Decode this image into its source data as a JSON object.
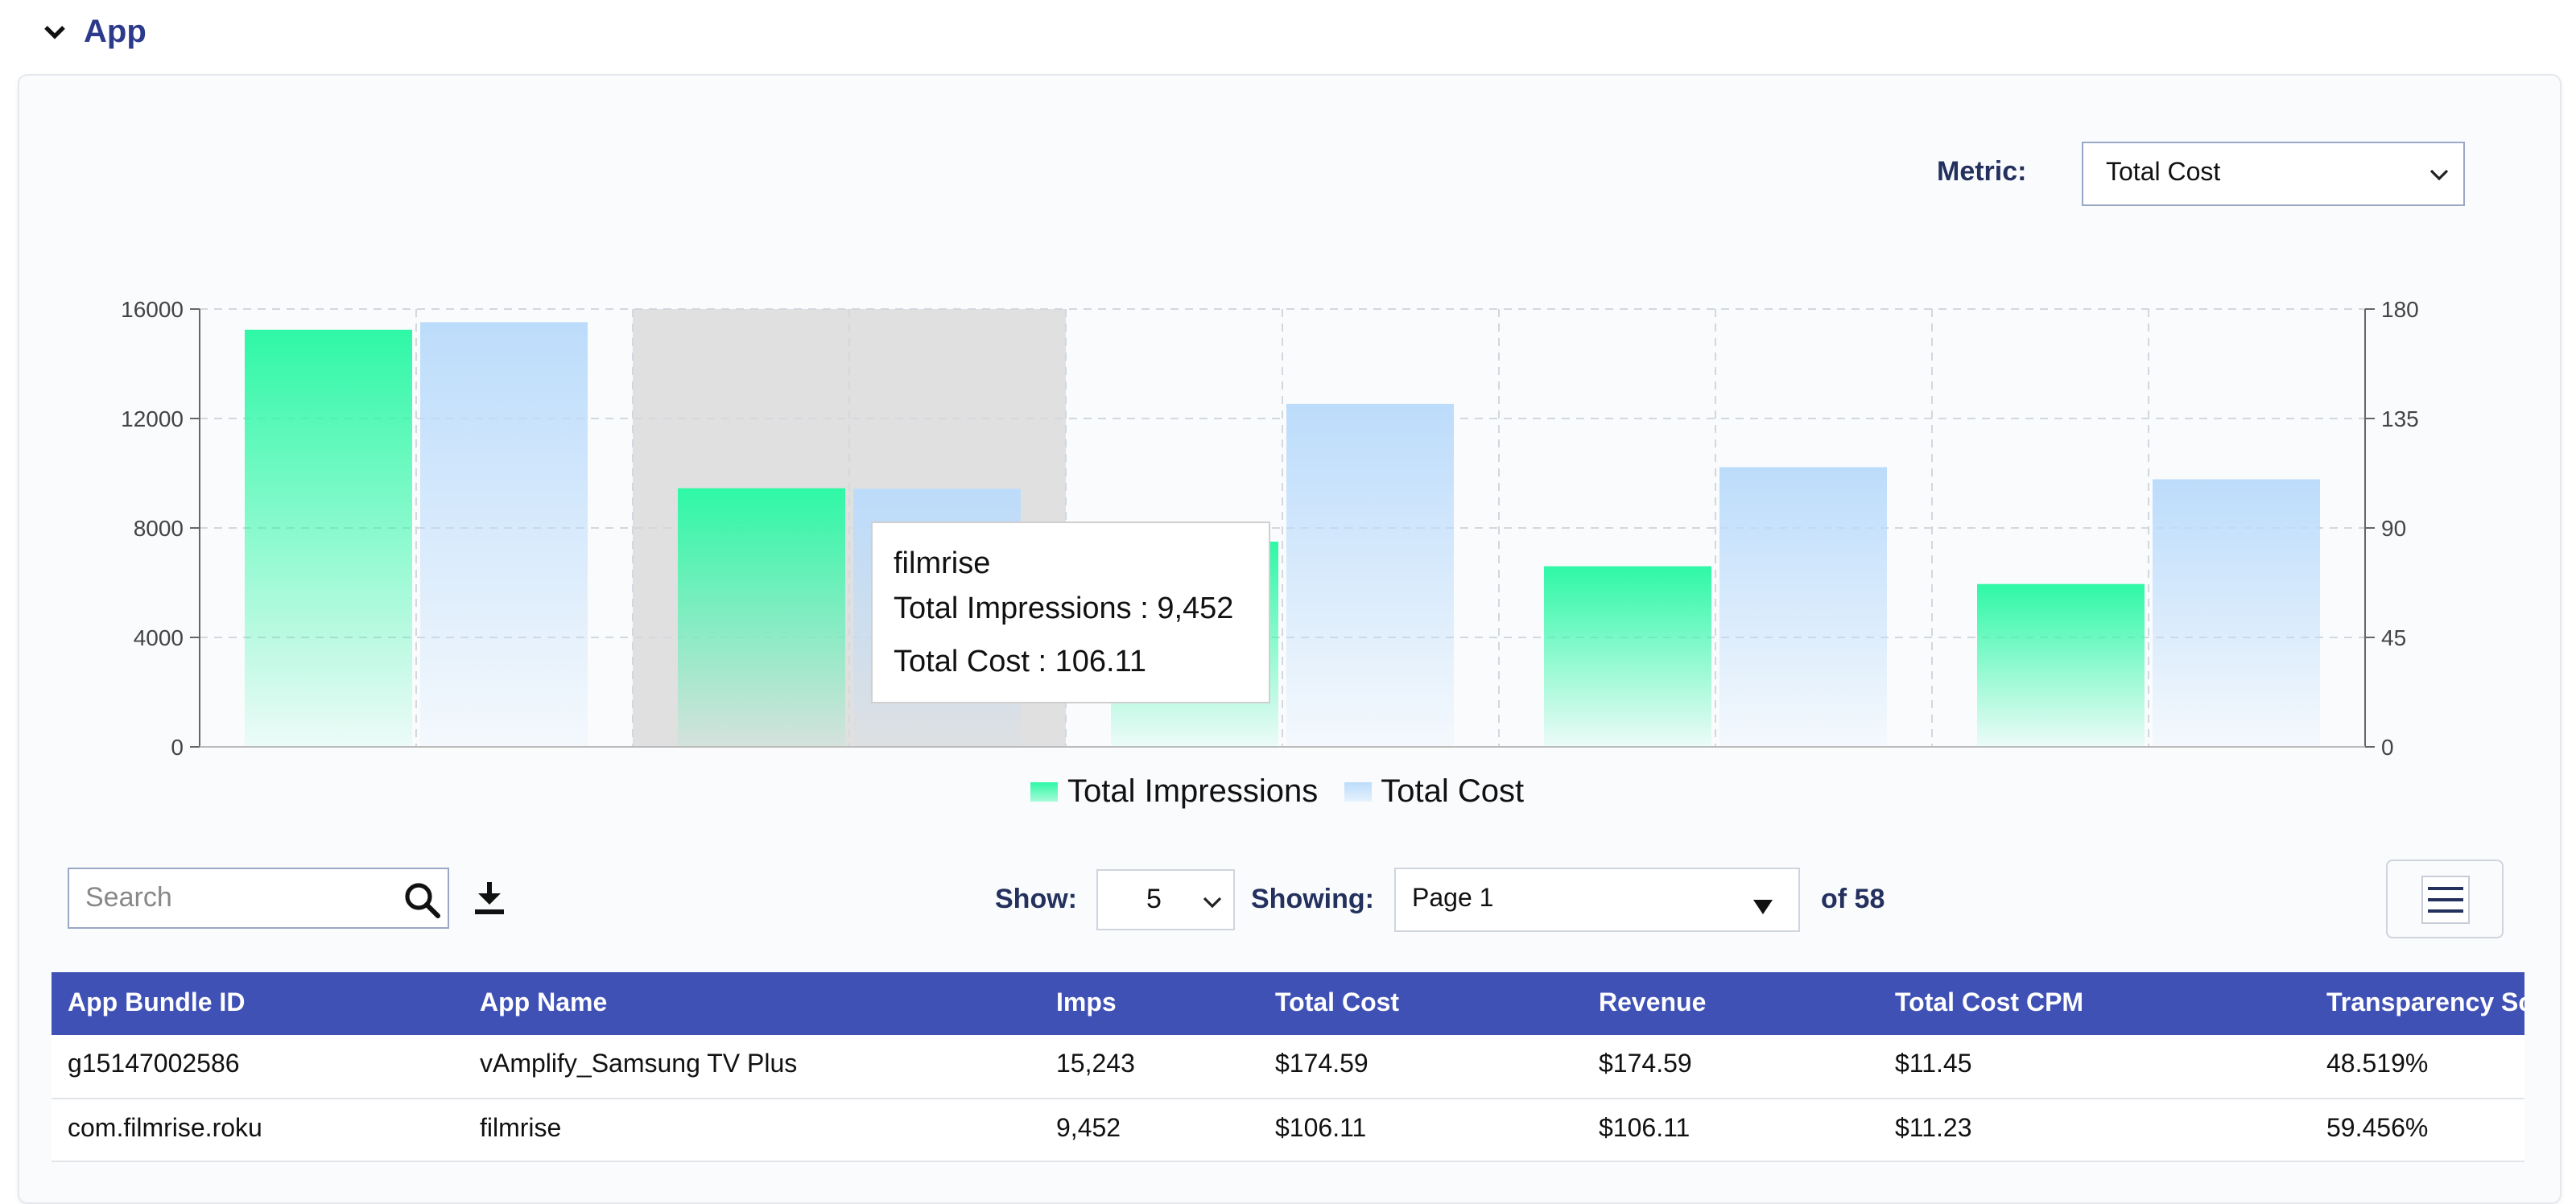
{
  "section": {
    "title": "App"
  },
  "metric": {
    "label": "Metric:",
    "value": "Total Cost"
  },
  "chart_data": {
    "type": "bar",
    "categories": [
      "vAmplify_Samsung TV Plus",
      "filmrise",
      "",
      "",
      ""
    ],
    "series": [
      {
        "name": "Total Impressions",
        "axis": "left",
        "values": [
          15243,
          9452,
          7500,
          6600,
          5950
        ]
      },
      {
        "name": "Total Cost",
        "axis": "right",
        "values": [
          174.59,
          106.11,
          141,
          115,
          110
        ]
      }
    ],
    "y_left": {
      "ticks": [
        0,
        4000,
        8000,
        12000,
        16000
      ],
      "range": [
        0,
        16000
      ]
    },
    "y_right": {
      "ticks": [
        0,
        45,
        90,
        135,
        180
      ],
      "range": [
        0,
        180
      ]
    },
    "grid": true,
    "legend_position": "bottom-center",
    "colors": {
      "impressions": "#2ef8a6",
      "cost": "#bcdcfb",
      "highlight": "#e0e0e0"
    },
    "highlighted_index": 1
  },
  "tooltip": {
    "title": "filmrise",
    "line1": "Total Impressions : 9,452",
    "line2": "Total Cost : 106.11"
  },
  "legend": {
    "impressions": "Total Impressions",
    "cost": "Total Cost"
  },
  "toolbar": {
    "search_placeholder": "Search",
    "search_icon": "search-icon",
    "download_icon": "download-icon",
    "show_label": "Show:",
    "show_value": "5",
    "showing_label": "Showing:",
    "page_value": "Page 1",
    "of_text": "of 58",
    "menu_icon": "hamburger-icon"
  },
  "table": {
    "headers": [
      "App Bundle ID",
      "App Name",
      "Imps",
      "Total Cost",
      "Revenue",
      "Total Cost CPM",
      "Transparency Score"
    ],
    "rows": [
      [
        "g15147002586",
        "vAmplify_Samsung TV Plus",
        "15,243",
        "$174.59",
        "$174.59",
        "$11.45",
        "48.519%"
      ],
      [
        "com.filmrise.roku",
        "filmrise",
        "9,452",
        "$106.11",
        "$106.11",
        "$11.23",
        "59.456%"
      ]
    ]
  },
  "colors": {
    "header_bg": "#3f51b5",
    "title": "#2d3a8c",
    "label": "#24305e"
  }
}
